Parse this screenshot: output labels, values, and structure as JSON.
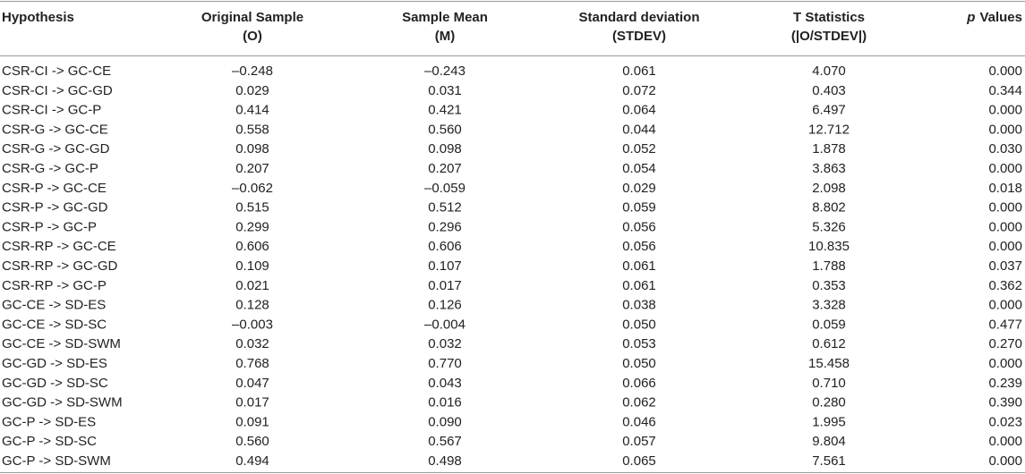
{
  "table": {
    "header": [
      {
        "lines": [
          "Hypothesis"
        ]
      },
      {
        "lines": [
          "Original Sample",
          "(O)"
        ]
      },
      {
        "lines": [
          "Sample Mean",
          "(M)"
        ]
      },
      {
        "lines": [
          "Standard deviation",
          "(STDEV)"
        ]
      },
      {
        "lines": [
          "T Statistics",
          "(|O/STDEV|)"
        ]
      },
      {
        "italic": "p",
        "lines": [
          "Values"
        ]
      }
    ],
    "rows": [
      [
        "CSR-CI -> GC-CE",
        "–0.248",
        "–0.243",
        "0.061",
        "4.070",
        "0.000"
      ],
      [
        "CSR-CI -> GC-GD",
        "0.029",
        "0.031",
        "0.072",
        "0.403",
        "0.344"
      ],
      [
        "CSR-CI -> GC-P",
        "0.414",
        "0.421",
        "0.064",
        "6.497",
        "0.000"
      ],
      [
        "CSR-G -> GC-CE",
        "0.558",
        "0.560",
        "0.044",
        "12.712",
        "0.000"
      ],
      [
        "CSR-G -> GC-GD",
        "0.098",
        "0.098",
        "0.052",
        "1.878",
        "0.030"
      ],
      [
        "CSR-G -> GC-P",
        "0.207",
        "0.207",
        "0.054",
        "3.863",
        "0.000"
      ],
      [
        "CSR-P -> GC-CE",
        "–0.062",
        "–0.059",
        "0.029",
        "2.098",
        "0.018"
      ],
      [
        "CSR-P -> GC-GD",
        "0.515",
        "0.512",
        "0.059",
        "8.802",
        "0.000"
      ],
      [
        "CSR-P -> GC-P",
        "0.299",
        "0.296",
        "0.056",
        "5.326",
        "0.000"
      ],
      [
        "CSR-RP -> GC-CE",
        "0.606",
        "0.606",
        "0.056",
        "10.835",
        "0.000"
      ],
      [
        "CSR-RP -> GC-GD",
        "0.109",
        "0.107",
        "0.061",
        "1.788",
        "0.037"
      ],
      [
        "CSR-RP -> GC-P",
        "0.021",
        "0.017",
        "0.061",
        "0.353",
        "0.362"
      ],
      [
        "GC-CE -> SD-ES",
        "0.128",
        "0.126",
        "0.038",
        "3.328",
        "0.000"
      ],
      [
        "GC-CE -> SD-SC",
        "–0.003",
        "–0.004",
        "0.050",
        "0.059",
        "0.477"
      ],
      [
        "GC-CE -> SD-SWM",
        "0.032",
        "0.032",
        "0.053",
        "0.612",
        "0.270"
      ],
      [
        "GC-GD -> SD-ES",
        "0.768",
        "0.770",
        "0.050",
        "15.458",
        "0.000"
      ],
      [
        "GC-GD -> SD-SC",
        "0.047",
        "0.043",
        "0.066",
        "0.710",
        "0.239"
      ],
      [
        "GC-GD -> SD-SWM",
        "0.017",
        "0.016",
        "0.062",
        "0.280",
        "0.390"
      ],
      [
        "GC-P -> SD-ES",
        "0.091",
        "0.090",
        "0.046",
        "1.995",
        "0.023"
      ],
      [
        "GC-P -> SD-SC",
        "0.560",
        "0.567",
        "0.057",
        "9.804",
        "0.000"
      ],
      [
        "GC-P -> SD-SWM",
        "0.494",
        "0.498",
        "0.065",
        "7.561",
        "0.000"
      ]
    ]
  }
}
